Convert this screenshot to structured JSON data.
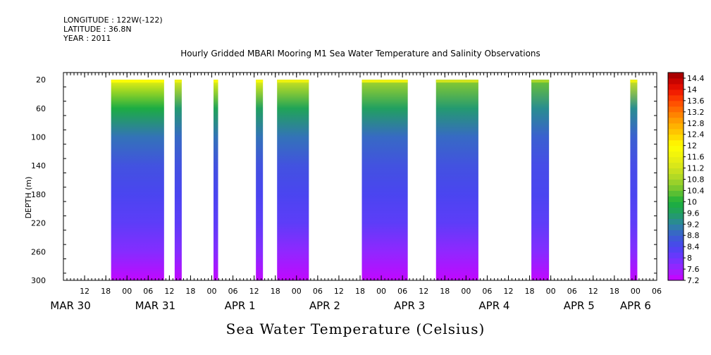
{
  "header": {
    "longitude": "LONGITUDE : 122W(-122)",
    "latitude": "LATITUDE : 36.8N",
    "year": "YEAR : 2011"
  },
  "title": "Hourly Gridded MBARI Mooring M1 Sea Water Temperature and Salinity Observations",
  "bottom_title": "Sea Water Temperature (Celsius)",
  "chart_data": {
    "type": "heatmap",
    "title": "Hourly Gridded MBARI Mooring M1 Sea Water Temperature and Salinity Observations",
    "variable": "Sea Water Temperature (Celsius)",
    "ylabel": "DEPTH (m)",
    "ylim": [
      300,
      10
    ],
    "y_ticks": [
      20,
      60,
      100,
      140,
      180,
      220,
      260,
      300
    ],
    "x_hour_range": [
      6,
      174
    ],
    "x_ticks": [
      {
        "hour": 12,
        "label": "12"
      },
      {
        "hour": 18,
        "label": "18"
      },
      {
        "hour": 24,
        "label": "00"
      },
      {
        "hour": 30,
        "label": "06"
      },
      {
        "hour": 36,
        "label": "12"
      },
      {
        "hour": 42,
        "label": "18"
      },
      {
        "hour": 48,
        "label": "00"
      },
      {
        "hour": 54,
        "label": "06"
      },
      {
        "hour": 60,
        "label": "12"
      },
      {
        "hour": 66,
        "label": "18"
      },
      {
        "hour": 72,
        "label": "00"
      },
      {
        "hour": 78,
        "label": "06"
      },
      {
        "hour": 84,
        "label": "12"
      },
      {
        "hour": 90,
        "label": "18"
      },
      {
        "hour": 96,
        "label": "00"
      },
      {
        "hour": 102,
        "label": "06"
      },
      {
        "hour": 108,
        "label": "12"
      },
      {
        "hour": 114,
        "label": "18"
      },
      {
        "hour": 120,
        "label": "00"
      },
      {
        "hour": 126,
        "label": "06"
      },
      {
        "hour": 132,
        "label": "12"
      },
      {
        "hour": 138,
        "label": "18"
      },
      {
        "hour": 144,
        "label": "00"
      },
      {
        "hour": 150,
        "label": "06"
      },
      {
        "hour": 156,
        "label": "12"
      },
      {
        "hour": 162,
        "label": "18"
      },
      {
        "hour": 168,
        "label": "00"
      },
      {
        "hour": 174,
        "label": "06"
      }
    ],
    "day_labels": [
      {
        "hour": 8,
        "label": "MAR 30"
      },
      {
        "hour": 32,
        "label": "MAR 31"
      },
      {
        "hour": 56,
        "label": "APR  1"
      },
      {
        "hour": 80,
        "label": "APR  2"
      },
      {
        "hour": 104,
        "label": "APR  3"
      },
      {
        "hour": 128,
        "label": "APR  4"
      },
      {
        "hour": 152,
        "label": "APR  5"
      },
      {
        "hour": 168,
        "label": "APR  6"
      }
    ],
    "data_segments": [
      {
        "start_hour": 19.5,
        "end_hour": 34.5,
        "surface_temp": 11.9,
        "t20": 11.6,
        "t60": 9.9,
        "t100": 9.0,
        "t140": 8.6,
        "t180": 8.4,
        "t220": 8.2,
        "t260": 7.8,
        "t300": 7.3
      },
      {
        "start_hour": 37.5,
        "end_hour": 39.5,
        "surface_temp": 11.6,
        "t20": 11.4,
        "t60": 9.5,
        "t100": 8.9,
        "t140": 8.6,
        "t180": 8.4,
        "t220": 8.2,
        "t260": 7.8,
        "t300": 7.3
      },
      {
        "start_hour": 48.5,
        "end_hour": 49.8,
        "surface_temp": 11.8,
        "t20": 11.6,
        "t60": 9.7,
        "t100": 9.0,
        "t140": 8.6,
        "t180": 8.4,
        "t220": 8.2,
        "t260": 7.8,
        "t300": 7.3
      },
      {
        "start_hour": 60.5,
        "end_hour": 62.5,
        "surface_temp": 11.8,
        "t20": 11.6,
        "t60": 9.6,
        "t100": 9.0,
        "t140": 8.6,
        "t180": 8.4,
        "t220": 8.2,
        "t260": 7.8,
        "t300": 7.3
      },
      {
        "start_hour": 66.5,
        "end_hour": 75.5,
        "surface_temp": 11.6,
        "t20": 11.2,
        "t60": 9.7,
        "t100": 9.0,
        "t140": 8.6,
        "t180": 8.4,
        "t220": 8.2,
        "t260": 7.7,
        "t300": 7.3
      },
      {
        "start_hour": 90.5,
        "end_hour": 103.5,
        "surface_temp": 11.6,
        "t20": 10.8,
        "t60": 9.6,
        "t100": 8.9,
        "t140": 8.6,
        "t180": 8.4,
        "t220": 8.2,
        "t260": 7.7,
        "t300": 7.3
      },
      {
        "start_hour": 111.5,
        "end_hour": 123.5,
        "surface_temp": 11.2,
        "t20": 10.6,
        "t60": 9.5,
        "t100": 8.9,
        "t140": 8.6,
        "t180": 8.4,
        "t220": 8.2,
        "t260": 7.7,
        "t300": 7.3
      },
      {
        "start_hour": 138.5,
        "end_hour": 143.5,
        "surface_temp": 10.8,
        "t20": 10.4,
        "t60": 9.3,
        "t100": 8.8,
        "t140": 8.5,
        "t180": 8.4,
        "t220": 8.2,
        "t260": 7.8,
        "t300": 7.3
      },
      {
        "start_hour": 166.5,
        "end_hour": 168.5,
        "surface_temp": 11.6,
        "t20": 11.2,
        "t60": 9.3,
        "t100": 8.8,
        "t140": 8.5,
        "t180": 8.4,
        "t220": 8.2,
        "t260": 7.8,
        "t300": 7.3
      }
    ],
    "colorbar": {
      "range": [
        7.2,
        14.6
      ],
      "step": 0.2,
      "labels": [
        "14.4",
        "14",
        "13.6",
        "13.2",
        "12.8",
        "12.4",
        "12",
        "11.6",
        "11.2",
        "10.8",
        "10.4",
        "10",
        "9.6",
        "9.2",
        "8.8",
        "8.4",
        "8",
        "7.6",
        "7.2"
      ],
      "colors": {
        "7.2": "#cc00ff",
        "7.6": "#9b22ff",
        "8.0": "#6f35ff",
        "8.4": "#4a45f0",
        "8.8": "#3a60d0",
        "9.2": "#2c86a0",
        "9.6": "#21a060",
        "10.0": "#1bb03a",
        "10.4": "#6cc430",
        "10.8": "#a8d628",
        "11.2": "#d2e41c",
        "11.6": "#eef20e",
        "12.0": "#ffff00",
        "12.4": "#ffcf00",
        "12.8": "#ffa800",
        "13.2": "#ff7800",
        "13.6": "#ff4500",
        "14.0": "#ee1100",
        "14.4": "#bb0000",
        "14.6": "#990000"
      }
    },
    "grid": false
  },
  "axes": {
    "depth_label": "DEPTH (m)"
  }
}
